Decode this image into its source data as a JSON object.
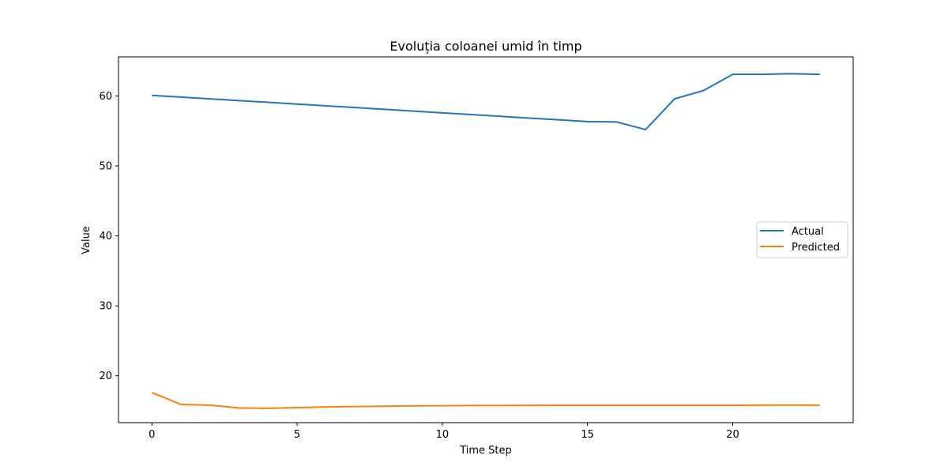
{
  "chart_data": {
    "type": "line",
    "title": "Evoluția coloanei umid în timp",
    "xlabel": "Time Step",
    "ylabel": "Value",
    "xlim": [
      -1.15,
      24.15
    ],
    "ylim": [
      13.3,
      65.6
    ],
    "xticks": [
      0,
      5,
      10,
      15,
      20
    ],
    "yticks": [
      20,
      30,
      40,
      50,
      60
    ],
    "grid": false,
    "legend_position": "center-right",
    "x": [
      0,
      1,
      2,
      3,
      4,
      5,
      6,
      7,
      8,
      9,
      10,
      11,
      12,
      13,
      14,
      15,
      16,
      17,
      18,
      19,
      20,
      21,
      22,
      23
    ],
    "series": [
      {
        "name": "Actual",
        "color": "#1f77b4",
        "values": [
          60.1,
          59.85,
          59.6,
          59.35,
          59.1,
          58.85,
          58.6,
          58.35,
          58.1,
          57.85,
          57.6,
          57.35,
          57.1,
          56.85,
          56.6,
          56.35,
          56.3,
          55.2,
          59.6,
          60.8,
          63.1,
          63.1,
          63.2,
          63.1
        ]
      },
      {
        "name": "Predicted",
        "color": "#ff7f0e",
        "values": [
          17.6,
          15.9,
          15.8,
          15.4,
          15.35,
          15.45,
          15.55,
          15.6,
          15.65,
          15.7,
          15.72,
          15.75,
          15.76,
          15.77,
          15.78,
          15.78,
          15.78,
          15.78,
          15.78,
          15.79,
          15.79,
          15.8,
          15.8,
          15.8
        ]
      }
    ]
  }
}
